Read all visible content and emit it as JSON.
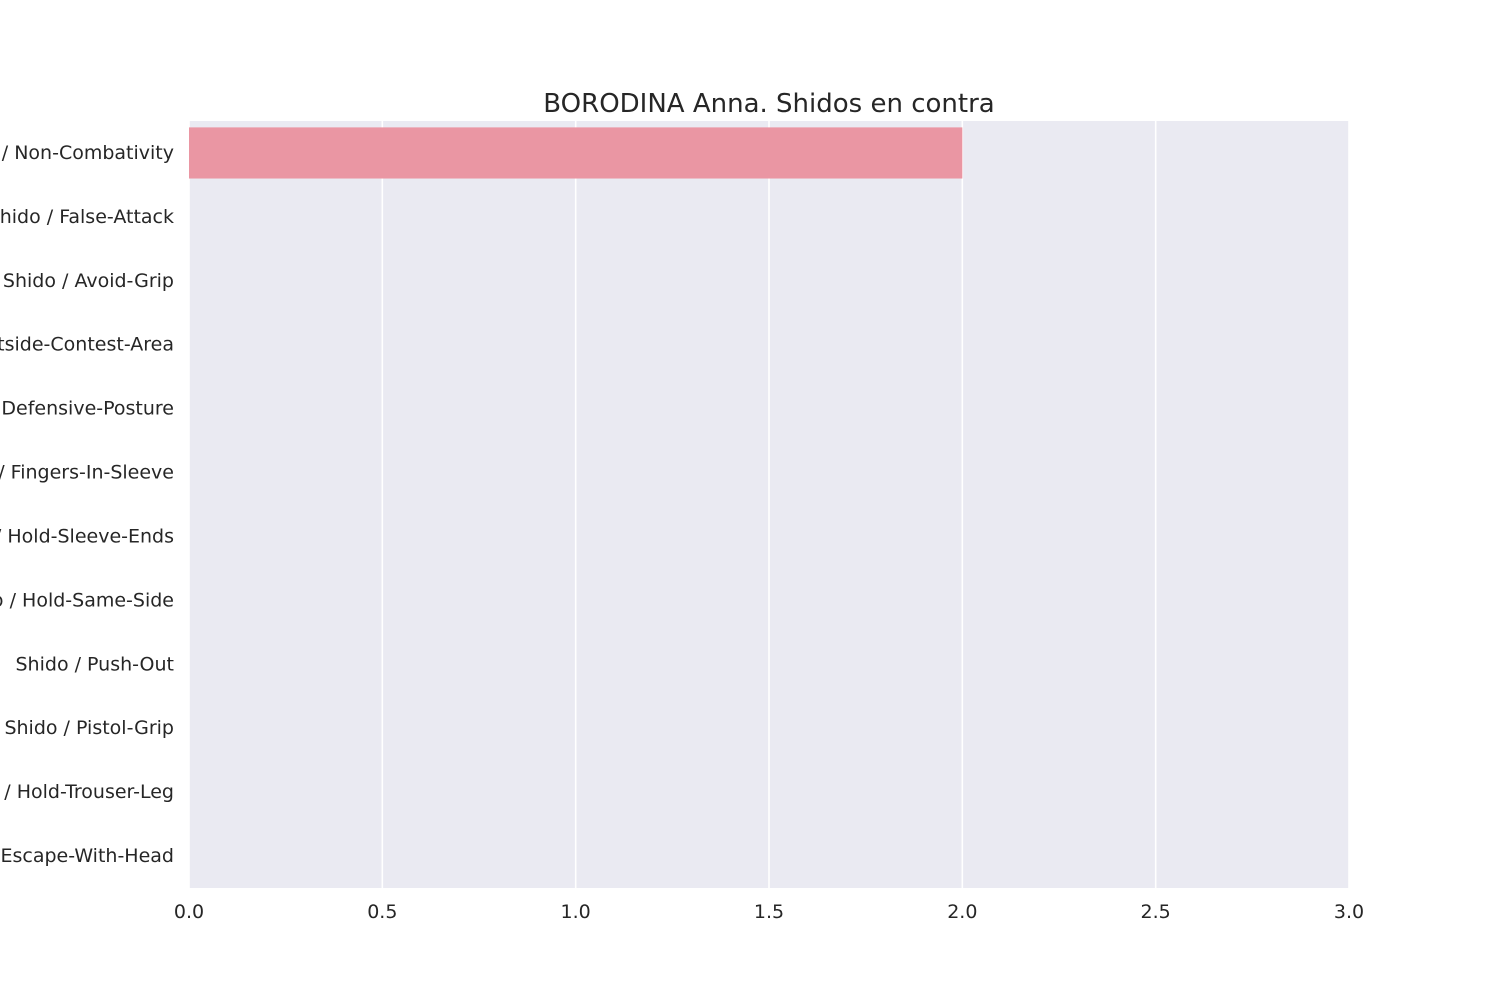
{
  "chart_data": {
    "type": "bar",
    "orientation": "horizontal",
    "title": "BORODINA Anna. Shidos en contra",
    "xlabel": "",
    "ylabel": "",
    "categories": [
      "Shido / Non-Combativity",
      "Shido / False-Attack",
      "Shido / Avoid-Grip",
      "Shido / Outside-Contest-Area",
      "Shido / Defensive-Posture",
      "Shido / Fingers-In-Sleeve",
      "Shido / Hold-Sleeve-Ends",
      "Shido / Hold-Same-Side",
      "Shido / Push-Out",
      "Shido / Pistol-Grip",
      "Shido / Hold-Trouser-Leg",
      "Shido / Escape-With-Head"
    ],
    "values": [
      2,
      0,
      0,
      0,
      0,
      0,
      0,
      0,
      0,
      0,
      0,
      0
    ],
    "xlim": [
      0,
      3
    ],
    "xticks": [
      "0.0",
      "0.5",
      "1.0",
      "1.5",
      "2.0",
      "2.5",
      "3.0"
    ],
    "grid": true,
    "colors": {
      "bar": "#ea96a3",
      "plot_background": "#eaeaf2",
      "grid": "#ffffff",
      "text": "#262626"
    }
  }
}
